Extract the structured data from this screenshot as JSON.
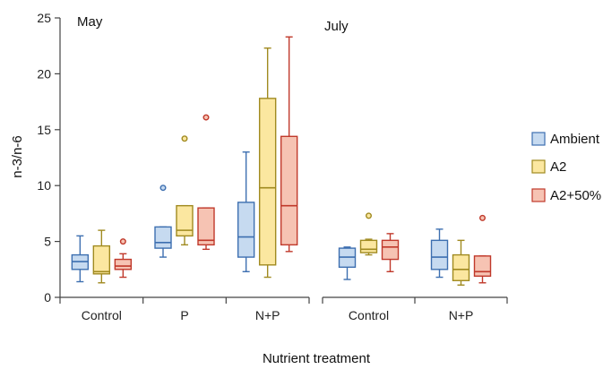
{
  "chart_data": {
    "type": "box",
    "title": "",
    "ylabel": "n-3/n-6",
    "xlabel": "Nutrient treatment",
    "ylim": [
      0,
      25
    ],
    "yticks": [
      0,
      5,
      10,
      15,
      20,
      25
    ],
    "grid": false,
    "legend_position": "right",
    "colors": {
      "Ambient": {
        "fill": "#c6daf0",
        "stroke": "#3d6fb0"
      },
      "A2": {
        "fill": "#fbe7a0",
        "stroke": "#a08a20"
      },
      "A2+50%": {
        "fill": "#f6c3b3",
        "stroke": "#c0392b"
      }
    },
    "legend": [
      {
        "series": "Ambient",
        "label": "Ambient"
      },
      {
        "series": "A2",
        "label": "A2"
      },
      {
        "series": "A2+50%",
        "label": "A2+50%"
      }
    ],
    "panels": [
      {
        "label": "May",
        "groups": [
          {
            "category": "Control",
            "boxes": [
              {
                "series": "Ambient",
                "min": 1.4,
                "q1": 2.5,
                "median": 3.2,
                "q3": 3.8,
                "max": 5.5,
                "outliers": []
              },
              {
                "series": "A2",
                "min": 1.3,
                "q1": 2.1,
                "median": 2.3,
                "q3": 4.6,
                "max": 6.0,
                "outliers": []
              },
              {
                "series": "A2+50%",
                "min": 1.8,
                "q1": 2.5,
                "median": 2.8,
                "q3": 3.4,
                "max": 3.9,
                "outliers": [
                  5.0
                ]
              }
            ]
          },
          {
            "category": "P",
            "boxes": [
              {
                "series": "Ambient",
                "min": 3.6,
                "q1": 4.4,
                "median": 4.9,
                "q3": 6.3,
                "max": 6.3,
                "outliers": [
                  9.8
                ]
              },
              {
                "series": "A2",
                "min": 4.7,
                "q1": 5.5,
                "median": 6.0,
                "q3": 8.2,
                "max": 8.2,
                "outliers": [
                  14.2
                ]
              },
              {
                "series": "A2+50%",
                "min": 4.3,
                "q1": 4.7,
                "median": 5.1,
                "q3": 8.0,
                "max": 8.0,
                "outliers": [
                  16.1
                ]
              }
            ]
          },
          {
            "category": "N+P",
            "boxes": [
              {
                "series": "Ambient",
                "min": 2.3,
                "q1": 3.6,
                "median": 5.4,
                "q3": 8.5,
                "max": 13.0,
                "outliers": []
              },
              {
                "series": "A2",
                "min": 1.8,
                "q1": 2.9,
                "median": 9.8,
                "q3": 17.8,
                "max": 22.3,
                "outliers": []
              },
              {
                "series": "A2+50%",
                "min": 4.1,
                "q1": 4.7,
                "median": 8.2,
                "q3": 14.4,
                "max": 23.3,
                "outliers": []
              }
            ]
          }
        ]
      },
      {
        "label": "July",
        "groups": [
          {
            "category": "Control",
            "boxes": [
              {
                "series": "Ambient",
                "min": 1.6,
                "q1": 2.7,
                "median": 3.6,
                "q3": 4.4,
                "max": 4.5,
                "outliers": []
              },
              {
                "series": "A2",
                "min": 3.8,
                "q1": 4.0,
                "median": 4.3,
                "q3": 5.1,
                "max": 5.2,
                "outliers": [
                  7.3
                ]
              },
              {
                "series": "A2+50%",
                "min": 2.3,
                "q1": 3.4,
                "median": 4.5,
                "q3": 5.1,
                "max": 5.7,
                "outliers": []
              }
            ]
          },
          {
            "category": "N+P",
            "boxes": [
              {
                "series": "Ambient",
                "min": 1.8,
                "q1": 2.5,
                "median": 3.6,
                "q3": 5.1,
                "max": 6.1,
                "outliers": []
              },
              {
                "series": "A2",
                "min": 1.1,
                "q1": 1.5,
                "median": 2.5,
                "q3": 3.8,
                "max": 5.1,
                "outliers": []
              },
              {
                "series": "A2+50%",
                "min": 1.3,
                "q1": 1.9,
                "median": 2.3,
                "q3": 3.7,
                "max": 3.7,
                "outliers": [
                  7.1
                ]
              }
            ]
          }
        ]
      }
    ]
  }
}
